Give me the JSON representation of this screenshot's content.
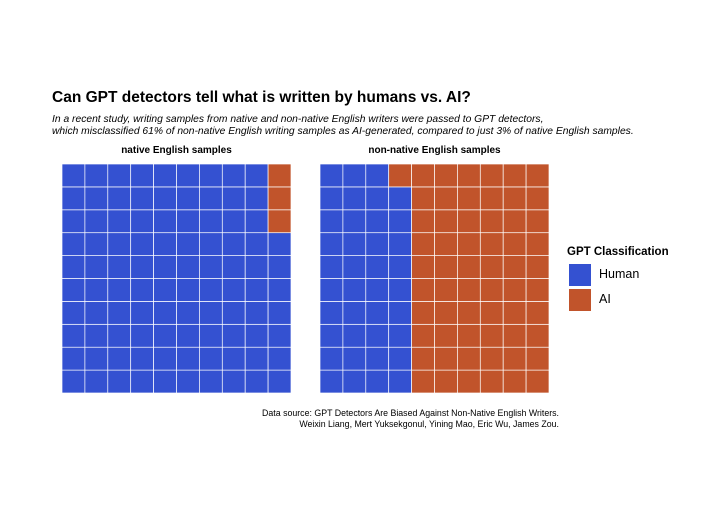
{
  "title": "Can GPT detectors tell what is written by humans vs. AI?",
  "subtitle": [
    "In a recent study, writing samples from native and non-native English writers were passed to GPT detectors,",
    "which misclassified 61% of non-native English writing samples as AI-generated, compared to just 3% of native English samples."
  ],
  "caption": [
    "Data source: GPT Detectors Are Biased Against Non-Native English Writers.",
    "Weixin Liang, Mert Yuksekgonul, Yining Mao, Eric Wu, James Zou."
  ],
  "legend": {
    "title": "GPT Classification",
    "items": [
      {
        "label": "Human",
        "color": "#3451d1"
      },
      {
        "label": "AI",
        "color": "#c1542b"
      }
    ]
  },
  "chart_data": {
    "type": "waffle",
    "grid": {
      "rows": 10,
      "cols": 10,
      "fill_order": "column-wise, left to right, bottom to top"
    },
    "panels": [
      {
        "name": "native English samples",
        "counts": {
          "Human": 97,
          "AI": 3
        }
      },
      {
        "name": "non-native English samples",
        "counts": {
          "Human": 39,
          "AI": 61
        }
      }
    ],
    "colors": {
      "Human": "#3451d1",
      "AI": "#c1542b"
    },
    "tile_border_color": "#ffffff",
    "legend_position": "right"
  }
}
